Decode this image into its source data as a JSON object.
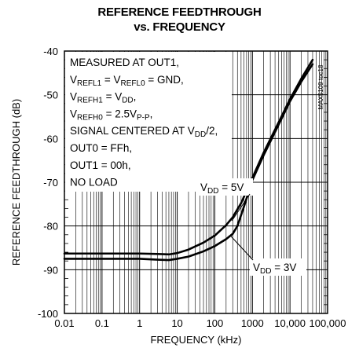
{
  "chart_data": {
    "type": "line",
    "title_line1": "REFERENCE FEEDTHROUGH",
    "title_line2": "vs. FREQUENCY",
    "xlabel": "FREQUENCY (kHz)",
    "ylabel": "REFERENCE FEEDTHROUGH (dB)",
    "x_scale": "log",
    "xlim": [
      0.01,
      100000
    ],
    "ylim": [
      -100,
      -40
    ],
    "x_ticks": [
      0.01,
      0.1,
      1,
      10,
      100,
      1000,
      10000,
      100000
    ],
    "x_tick_labels": [
      "0.01",
      "0.1",
      "1",
      "10",
      "100",
      "1000",
      "10,000",
      "100,000"
    ],
    "y_ticks": [
      -100,
      -90,
      -80,
      -70,
      -60,
      -50,
      -40
    ],
    "y_tick_labels": [
      "-100",
      "-90",
      "-80",
      "-70",
      "-60",
      "-50",
      "-40"
    ],
    "grid": true,
    "chart_code": "MAX5109 toc18",
    "conditions": [
      {
        "main": "MEASURED AT OUT1,",
        "segments": [
          [
            "MEASURED AT OUT1,",
            false
          ]
        ]
      },
      {
        "segments": [
          [
            "V",
            false
          ],
          [
            "REFL1",
            true
          ],
          [
            " = V",
            false
          ],
          [
            "REFL0",
            true
          ],
          [
            " = GND,",
            false
          ]
        ]
      },
      {
        "segments": [
          [
            "V",
            false
          ],
          [
            "REFH1",
            true
          ],
          [
            " = V",
            false
          ],
          [
            "DD",
            true
          ],
          [
            ",",
            false
          ]
        ]
      },
      {
        "segments": [
          [
            "V",
            false
          ],
          [
            "REFH0",
            true
          ],
          [
            " = 2.5V",
            false
          ],
          [
            "P-P",
            true
          ],
          [
            ",",
            false
          ]
        ]
      },
      {
        "segments": [
          [
            "SIGNAL CENTERED AT V",
            false
          ],
          [
            "DD",
            true
          ],
          [
            "/2,",
            false
          ]
        ]
      },
      {
        "segments": [
          [
            "OUT0 = FFh,",
            false
          ]
        ]
      },
      {
        "segments": [
          [
            "OUT1 = 00h,",
            false
          ]
        ]
      },
      {
        "segments": [
          [
            "NO LOAD",
            false
          ]
        ]
      }
    ],
    "series": [
      {
        "name": "VDD = 5V",
        "label_segments": [
          [
            "V",
            false
          ],
          [
            "DD",
            true
          ],
          [
            " = 5V",
            false
          ]
        ],
        "x": [
          0.01,
          0.1,
          1,
          3,
          6,
          10,
          20,
          50,
          100,
          200,
          300,
          500,
          1000,
          2000,
          5000,
          10000,
          20000,
          40000
        ],
        "y": [
          -86.3,
          -86.3,
          -86.3,
          -86.4,
          -86.5,
          -86.2,
          -85.4,
          -83.8,
          -82.2,
          -79.8,
          -78.0,
          -74.8,
          -69.0,
          -63.2,
          -56.3,
          -51.0,
          -46.3,
          -42.0
        ]
      },
      {
        "name": "VDD = 3V",
        "label_segments": [
          [
            "V",
            false
          ],
          [
            "DD",
            true
          ],
          [
            " = 3V",
            false
          ]
        ],
        "x": [
          0.01,
          0.1,
          1,
          3,
          6,
          10,
          20,
          50,
          100,
          200,
          300,
          400,
          600,
          1000,
          2000,
          5000,
          10000,
          20000,
          40000
        ],
        "y": [
          -87.5,
          -87.5,
          -87.5,
          -87.7,
          -87.8,
          -87.5,
          -87.0,
          -85.8,
          -84.6,
          -83.0,
          -81.8,
          -80.0,
          -75.5,
          -69.5,
          -63.8,
          -56.8,
          -51.5,
          -47.0,
          -43.0
        ]
      }
    ]
  }
}
